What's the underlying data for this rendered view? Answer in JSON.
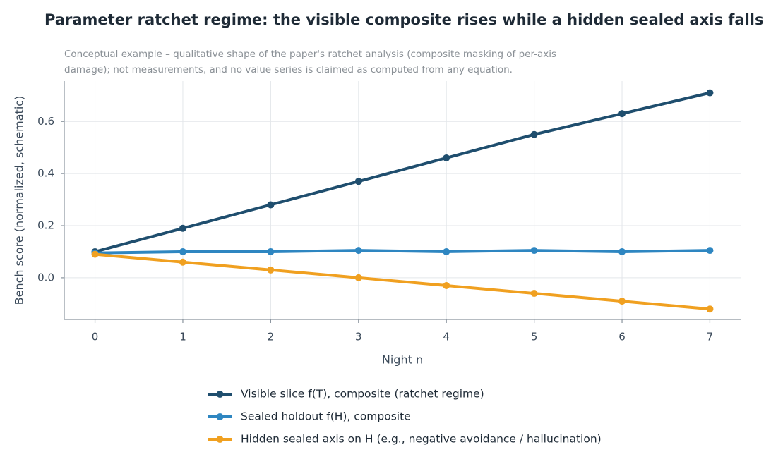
{
  "chart_data": {
    "type": "line",
    "title": "Parameter ratchet regime: the visible composite rises while a hidden sealed axis falls",
    "subtitle": [
      "Conceptual example – qualitative shape of the paper's ratchet analysis (composite masking of per-axis",
      "damage); not measurements, and no value series is claimed as computed from any equation."
    ],
    "x_label": "Night n",
    "y_label": "Bench score (normalized, schematic)",
    "x": [
      0,
      1,
      2,
      3,
      4,
      5,
      6,
      7
    ],
    "series": [
      {
        "name": "Visible slice f(T), composite (ratchet regime)",
        "color": "#1f4e6e",
        "values": [
          0.1,
          0.19,
          0.28,
          0.37,
          0.46,
          0.55,
          0.63,
          0.71
        ]
      },
      {
        "name": "Sealed holdout f(H), composite",
        "color": "#2e86c1",
        "values": [
          0.095,
          0.1,
          0.1,
          0.105,
          0.1,
          0.105,
          0.1,
          0.105
        ]
      },
      {
        "name": "Hidden sealed axis on H (e.g., negative avoidance / hallucination)",
        "color": "#f0a020",
        "values": [
          0.09,
          0.06,
          0.03,
          0.0,
          -0.03,
          -0.06,
          -0.09,
          -0.12
        ]
      }
    ],
    "xlim": [
      -0.35,
      7.35
    ],
    "ylim": [
      -0.16,
      0.755
    ],
    "xticks": [
      0,
      1,
      2,
      3,
      4,
      5,
      6,
      7
    ],
    "yticks": [
      {
        "value": 0,
        "label": "0.0"
      },
      {
        "value": 0.2,
        "label": "0.2"
      },
      {
        "value": 0.4,
        "label": "0.4"
      },
      {
        "value": 0.6,
        "label": "0.6"
      }
    ],
    "grid": true,
    "legend": "bottom"
  }
}
